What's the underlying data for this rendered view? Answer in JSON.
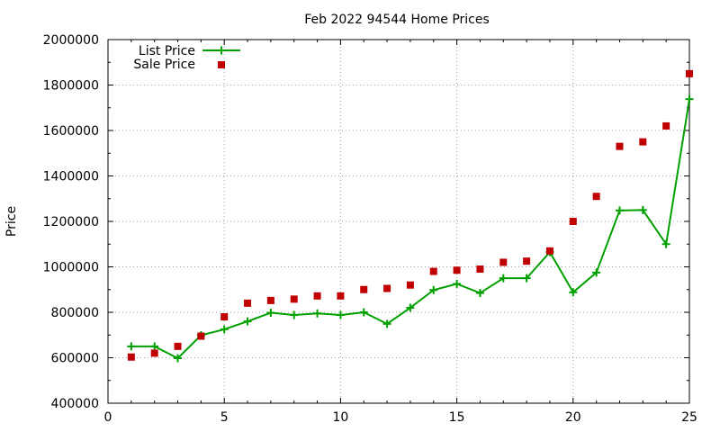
{
  "chart_data": {
    "type": "line",
    "title": "Feb 2022 94544 Home Prices",
    "xlabel": "",
    "ylabel": "Price",
    "xlim": [
      0,
      25
    ],
    "ylim": [
      400000,
      2000000
    ],
    "x_ticks": [
      0,
      5,
      10,
      15,
      20,
      25
    ],
    "y_ticks": [
      400000,
      600000,
      800000,
      1000000,
      1200000,
      1400000,
      1600000,
      1800000,
      2000000
    ],
    "grid": true,
    "legend_position": "top-left",
    "x": [
      1,
      2,
      3,
      4,
      5,
      6,
      7,
      8,
      9,
      10,
      11,
      12,
      13,
      14,
      15,
      16,
      17,
      18,
      19,
      20,
      21,
      22,
      23,
      24,
      25
    ],
    "series": [
      {
        "name": "List Price",
        "style": "line-with-plus-markers",
        "color": "#00a000",
        "values": [
          650000,
          650000,
          598000,
          699000,
          725000,
          760000,
          798000,
          788000,
          795000,
          788000,
          800000,
          749000,
          820000,
          898000,
          925000,
          885000,
          950000,
          950000,
          1065000,
          888000,
          975000,
          1248000,
          1250000,
          1100000,
          1738000
        ]
      },
      {
        "name": "Sale Price",
        "style": "square-markers",
        "color": "#c00000",
        "values": [
          603000,
          620000,
          650000,
          695000,
          780000,
          840000,
          852000,
          858000,
          872000,
          872000,
          900000,
          905000,
          920000,
          980000,
          985000,
          990000,
          1020000,
          1025000,
          1070000,
          1200000,
          1310000,
          1530000,
          1550000,
          1620000,
          1850000
        ]
      }
    ]
  }
}
